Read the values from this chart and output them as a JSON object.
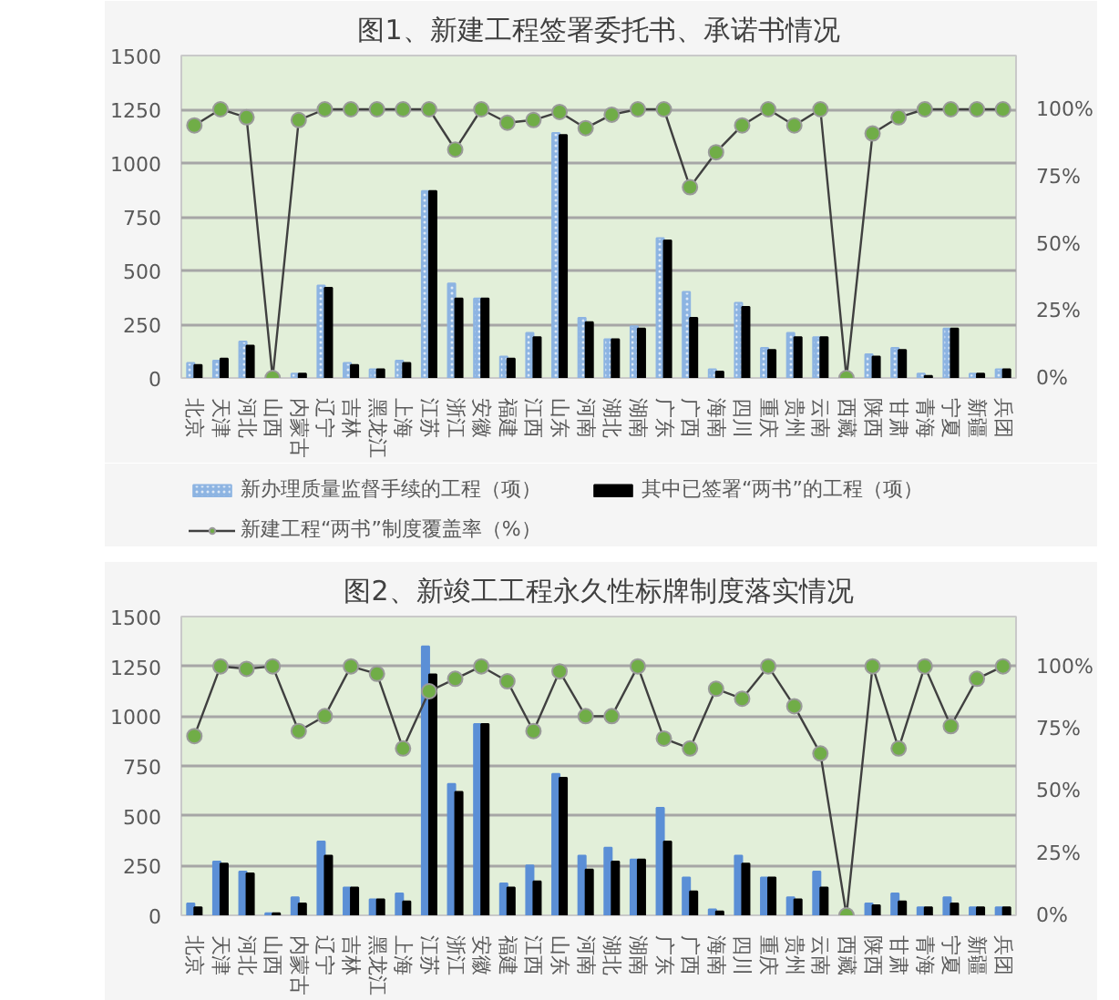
{
  "chart_data": [
    {
      "type": "bar",
      "title": "图1、新建工程签署委托书、承诺书情况",
      "categories": [
        "北京",
        "天津",
        "河北",
        "山西",
        "内蒙古",
        "辽宁",
        "吉林",
        "黑龙江",
        "上海",
        "江苏",
        "浙江",
        "安徽",
        "福建",
        "江西",
        "山东",
        "河南",
        "湖北",
        "湖南",
        "广东",
        "广西",
        "海南",
        "四川",
        "重庆",
        "贵州",
        "云南",
        "西藏",
        "陕西",
        "甘肃",
        "青海",
        "宁夏",
        "新疆",
        "兵团"
      ],
      "series": [
        {
          "name": "新办理质量监督手续的工程（项）",
          "color": "#8db4e2",
          "values": [
            70,
            80,
            170,
            0,
            20,
            430,
            70,
            40,
            80,
            870,
            440,
            370,
            100,
            210,
            1140,
            280,
            180,
            240,
            650,
            400,
            40,
            350,
            140,
            210,
            190,
            0,
            110,
            140,
            20,
            230,
            20,
            40
          ]
        },
        {
          "name": "其中已签署“两书”的工程（项）",
          "color": "#000000",
          "values": [
            60,
            90,
            150,
            0,
            20,
            420,
            60,
            40,
            70,
            870,
            370,
            370,
            90,
            190,
            1130,
            260,
            180,
            230,
            640,
            280,
            30,
            330,
            130,
            190,
            190,
            0,
            100,
            130,
            10,
            230,
            20,
            40
          ]
        },
        {
          "name": "新建工程“两书”制度覆盖率（%）",
          "type": "line",
          "axis": "y2",
          "color": "#70ad47",
          "values": [
            94,
            100,
            97,
            0,
            96,
            100,
            100,
            100,
            100,
            100,
            85,
            100,
            95,
            96,
            99,
            93,
            98,
            100,
            100,
            71,
            84,
            94,
            100,
            94,
            100,
            0,
            91,
            97,
            100,
            100,
            100,
            100
          ]
        }
      ],
      "ylim": [
        0,
        1500
      ],
      "yticks": [
        0,
        250,
        500,
        750,
        1000,
        1250,
        1500
      ],
      "y2lim": [
        0,
        120
      ],
      "y2ticks": [
        {
          "value": 0,
          "label": "0%"
        },
        {
          "value": 25,
          "label": "25%"
        },
        {
          "value": 50,
          "label": "50%"
        },
        {
          "value": 75,
          "label": "75%"
        },
        {
          "value": 100,
          "label": "100%"
        }
      ],
      "grid": "y",
      "legend": "bottom",
      "marker": "circle",
      "line_style": "solid"
    },
    {
      "type": "bar",
      "title": "图2、新竣工工程永久性标牌制度落实情况",
      "categories": [
        "北京",
        "天津",
        "河北",
        "山西",
        "内蒙古",
        "辽宁",
        "吉林",
        "黑龙江",
        "上海",
        "江苏",
        "浙江",
        "安徽",
        "福建",
        "江西",
        "山东",
        "河南",
        "湖北",
        "湖南",
        "广东",
        "广西",
        "海南",
        "四川",
        "重庆",
        "贵州",
        "云南",
        "西藏",
        "陕西",
        "甘肃",
        "青海",
        "宁夏",
        "新疆",
        "兵团"
      ],
      "series": [
        {
          "color": "#5b8fd6",
          "values": [
            60,
            270,
            220,
            10,
            90,
            370,
            140,
            80,
            110,
            1350,
            660,
            960,
            160,
            250,
            710,
            300,
            340,
            280,
            540,
            190,
            30,
            300,
            190,
            90,
            220,
            0,
            60,
            110,
            40,
            90,
            40,
            40
          ]
        },
        {
          "color": "#000000",
          "values": [
            40,
            260,
            210,
            10,
            60,
            300,
            140,
            80,
            70,
            1210,
            620,
            960,
            140,
            170,
            690,
            230,
            270,
            280,
            370,
            120,
            20,
            260,
            190,
            80,
            140,
            0,
            50,
            70,
            40,
            60,
            40,
            40
          ]
        },
        {
          "type": "line",
          "axis": "y2",
          "color": "#70ad47",
          "values": [
            72,
            100,
            99,
            100,
            74,
            80,
            100,
            97,
            67,
            90,
            95,
            100,
            94,
            74,
            98,
            80,
            80,
            100,
            71,
            67,
            91,
            87,
            100,
            84,
            65,
            0,
            100,
            67,
            100,
            76,
            95,
            100
          ]
        }
      ],
      "ylim": [
        0,
        1500
      ],
      "yticks": [
        0,
        250,
        500,
        750,
        1000,
        1250,
        1500
      ],
      "y2lim": [
        0,
        120
      ],
      "y2ticks": [
        {
          "value": 0,
          "label": "0%"
        },
        {
          "value": 25,
          "label": "25%"
        },
        {
          "value": 50,
          "label": "50%"
        },
        {
          "value": 75,
          "label": "75%"
        },
        {
          "value": 100,
          "label": "100%"
        }
      ],
      "grid": "y",
      "marker": "circle",
      "line_style": "solid"
    }
  ]
}
